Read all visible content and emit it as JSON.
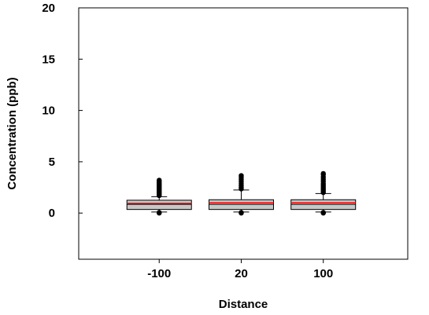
{
  "chart_data": {
    "type": "box",
    "title": "",
    "xlabel": "Distance",
    "ylabel": "Concentration (ppb)",
    "ylim": [
      -4.5,
      20
    ],
    "yticks": [
      0,
      5,
      10,
      15,
      20
    ],
    "grid": false,
    "categories": [
      "-100",
      "20",
      "100"
    ],
    "boxes": [
      {
        "category": "-100",
        "q1": 0.35,
        "median": 0.85,
        "mean": 0.95,
        "q3": 1.25,
        "whisker_low": 0.1,
        "whisker_high": 1.6,
        "outliers": [
          0.0,
          0.05,
          1.7,
          1.8,
          1.9,
          2.0,
          2.1,
          2.2,
          2.3,
          2.4,
          2.5,
          2.6,
          2.7,
          2.8,
          2.9,
          3.0,
          3.1,
          3.2
        ]
      },
      {
        "category": "20",
        "q1": 0.35,
        "median": 0.85,
        "mean": 1.0,
        "q3": 1.3,
        "whisker_low": 0.1,
        "whisker_high": 2.25,
        "outliers": [
          0.0,
          0.05,
          2.35,
          2.5,
          2.7,
          2.9,
          3.1,
          3.3,
          3.5,
          3.65
        ]
      },
      {
        "category": "100",
        "q1": 0.35,
        "median": 0.85,
        "mean": 1.0,
        "q3": 1.3,
        "whisker_low": 0.1,
        "whisker_high": 1.9,
        "outliers": [
          0.0,
          0.05,
          2.0,
          2.15,
          2.3,
          2.45,
          2.6,
          2.75,
          2.9,
          3.1,
          3.3,
          3.5,
          3.75,
          3.85
        ]
      }
    ],
    "colors": {
      "box_fill": "#c8c8c8",
      "box_stroke": "#000000",
      "median": "#000000",
      "mean": "#ff0000",
      "outlier": "#000000"
    }
  }
}
